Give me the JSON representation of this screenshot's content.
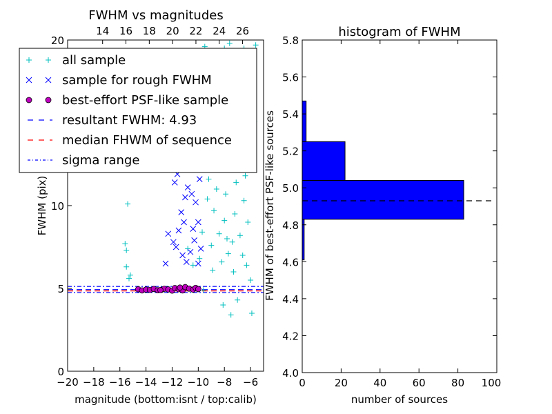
{
  "chart_data": [
    {
      "type": "scatter",
      "title": "FWHM vs magnitudes",
      "xlabel": "magnitude (bottom:isnt / top:calib)",
      "ylabel": "FWHM (pix)",
      "xlim": [
        -20,
        -5
      ],
      "ylim": [
        0,
        20
      ],
      "xticks": [
        -20,
        -18,
        -16,
        -14,
        -12,
        -10,
        -8,
        -6
      ],
      "yticks": [
        0,
        5,
        10,
        15,
        20
      ],
      "top_xticks": [
        14,
        16,
        18,
        20,
        22,
        24,
        26
      ],
      "top_xlim": [
        11,
        27.8
      ],
      "legend_position": "upper-left",
      "legend": [
        {
          "label": "all sample",
          "marker": "plus",
          "color": "#00bfbf"
        },
        {
          "label": "sample for rough FWHM",
          "marker": "x",
          "color": "#0000ff"
        },
        {
          "label": "best-effort PSF-like sample",
          "marker": "circle",
          "color": "#bf00bf"
        },
        {
          "label": "resultant FWHM: 4.93",
          "line": "dashed",
          "color": "#0000ff"
        },
        {
          "label": "median FHWM of sequence",
          "line": "dashed",
          "color": "#ff0000"
        },
        {
          "label": "sigma range",
          "line": "dashdot",
          "color": "#0000ff"
        }
      ],
      "resultant_fwhm": 4.93,
      "median_fwhm": 4.85,
      "sigma_range": [
        4.75,
        5.12
      ],
      "series": [
        {
          "name": "all sample",
          "marker": "plus",
          "color": "#00bfbf",
          "points": [
            [
              -15.6,
              7.7
            ],
            [
              -15.5,
              6.3
            ],
            [
              -15.4,
              10.1
            ],
            [
              -15.3,
              5.6
            ],
            [
              -15.2,
              5.8
            ],
            [
              -15.5,
              7.3
            ],
            [
              -5.6,
              19.7
            ],
            [
              -5.7,
              15.1
            ],
            [
              -5.9,
              3.5
            ],
            [
              -6.5,
              19.5
            ],
            [
              -7.6,
              19.8
            ],
            [
              -9.5,
              19.6
            ],
            [
              -8.0,
              19.5
            ],
            [
              -7.4,
              14.6
            ],
            [
              -6.8,
              13.5
            ],
            [
              -9.8,
              14.2
            ],
            [
              -9.4,
              13.8
            ],
            [
              -8.7,
              15.2
            ],
            [
              -7.6,
              12.4
            ],
            [
              -8.3,
              12.2
            ],
            [
              -9.2,
              11.6
            ],
            [
              -8.6,
              11.0
            ],
            [
              -7.9,
              10.7
            ],
            [
              -7.2,
              9.5
            ],
            [
              -6.8,
              8.2
            ],
            [
              -6.3,
              6.4
            ],
            [
              -6.0,
              5.5
            ],
            [
              -7.0,
              4.3
            ],
            [
              -7.5,
              3.4
            ],
            [
              -8.1,
              4.0
            ],
            [
              -9.6,
              4.9
            ],
            [
              -10.2,
              5.0
            ],
            [
              -8.4,
              8.3
            ],
            [
              -8.8,
              9.7
            ],
            [
              -9.0,
              7.6
            ],
            [
              -7.7,
              7.1
            ],
            [
              -6.6,
              7.0
            ],
            [
              -7.3,
              6.0
            ],
            [
              -8.2,
              6.6
            ],
            [
              -9.7,
              8.4
            ],
            [
              -10.4,
              6.4
            ],
            [
              -10.8,
              7.4
            ],
            [
              -8.5,
              13.0
            ],
            [
              -7.1,
              11.4
            ],
            [
              -6.5,
              10.3
            ],
            [
              -6.9,
              12.9
            ],
            [
              -9.1,
              12.7
            ],
            [
              -9.3,
              10.4
            ],
            [
              -8.0,
              9.1
            ],
            [
              -7.8,
              8.0
            ],
            [
              -7.4,
              7.8
            ],
            [
              -8.9,
              6.1
            ],
            [
              -9.9,
              6.8
            ],
            [
              -6.2,
              9.0
            ],
            [
              -6.4,
              11.8
            ],
            [
              -8.3,
              14.3
            ],
            [
              -9.0,
              16.2
            ],
            [
              -7.5,
              16.8
            ],
            [
              -8.6,
              18.2
            ],
            [
              -9.4,
              17.2
            ]
          ]
        },
        {
          "name": "sample for rough FWHM",
          "marker": "x",
          "color": "#0000ff",
          "points": [
            [
              -12.5,
              6.5
            ],
            [
              -11.5,
              8.5
            ],
            [
              -11.1,
              9.0
            ],
            [
              -11.3,
              9.6
            ],
            [
              -10.8,
              11.1
            ],
            [
              -10.5,
              10.7
            ],
            [
              -10.2,
              10.2
            ],
            [
              -11.0,
              10.5
            ],
            [
              -11.8,
              11.4
            ],
            [
              -10.8,
              12.5
            ],
            [
              -10.6,
              13.0
            ],
            [
              -11.6,
              11.9
            ],
            [
              -10.0,
              9.0
            ],
            [
              -10.3,
              7.9
            ],
            [
              -10.6,
              7.2
            ],
            [
              -10.9,
              6.6
            ],
            [
              -11.7,
              7.5
            ],
            [
              -11.2,
              7.0
            ],
            [
              -10.0,
              6.5
            ],
            [
              -9.8,
              7.4
            ],
            [
              -11.9,
              7.8
            ],
            [
              -12.3,
              8.3
            ],
            [
              -10.4,
              8.6
            ],
            [
              -9.9,
              11.6
            ],
            [
              -10.9,
              14.0
            ],
            [
              -10.7,
              15.0
            ]
          ]
        },
        {
          "name": "best-effort PSF-like sample",
          "marker": "circle",
          "color": "#bf00bf",
          "points": [
            [
              -14.6,
              4.95
            ],
            [
              -14.3,
              4.88
            ],
            [
              -14.0,
              4.93
            ],
            [
              -13.7,
              4.91
            ],
            [
              -13.4,
              4.97
            ],
            [
              -13.1,
              4.89
            ],
            [
              -12.8,
              4.92
            ],
            [
              -12.6,
              4.98
            ],
            [
              -12.3,
              4.94
            ],
            [
              -12.0,
              4.87
            ],
            [
              -11.8,
              5.02
            ],
            [
              -11.5,
              4.95
            ],
            [
              -11.2,
              4.88
            ],
            [
              -11.0,
              5.08
            ],
            [
              -10.7,
              4.99
            ],
            [
              -10.4,
              4.93
            ],
            [
              -10.2,
              5.03
            ],
            [
              -10.0,
              4.96
            ],
            [
              -11.4,
              5.05
            ],
            [
              -12.9,
              4.9
            ]
          ]
        }
      ]
    },
    {
      "type": "histogram",
      "orientation": "horizontal",
      "title": "histogram of FWHM",
      "xlabel": "number of sources",
      "ylabel": "FWHM of best-effort PSF-like sources",
      "xlim": [
        0,
        100
      ],
      "ylim": [
        4.0,
        5.8
      ],
      "xticks": [
        0,
        20,
        40,
        60,
        80,
        100
      ],
      "yticks": [
        4.0,
        4.2,
        4.4,
        4.6,
        4.8,
        5.0,
        5.2,
        5.4,
        5.6,
        5.8
      ],
      "bins": [
        {
          "from": 4.61,
          "to": 4.83,
          "count": 1
        },
        {
          "from": 4.83,
          "to": 5.04,
          "count": 83
        },
        {
          "from": 5.04,
          "to": 5.25,
          "count": 22
        },
        {
          "from": 5.25,
          "to": 5.47,
          "count": 2
        }
      ],
      "bar_color": "#0000ff",
      "resultant_fwhm": 4.93
    }
  ]
}
